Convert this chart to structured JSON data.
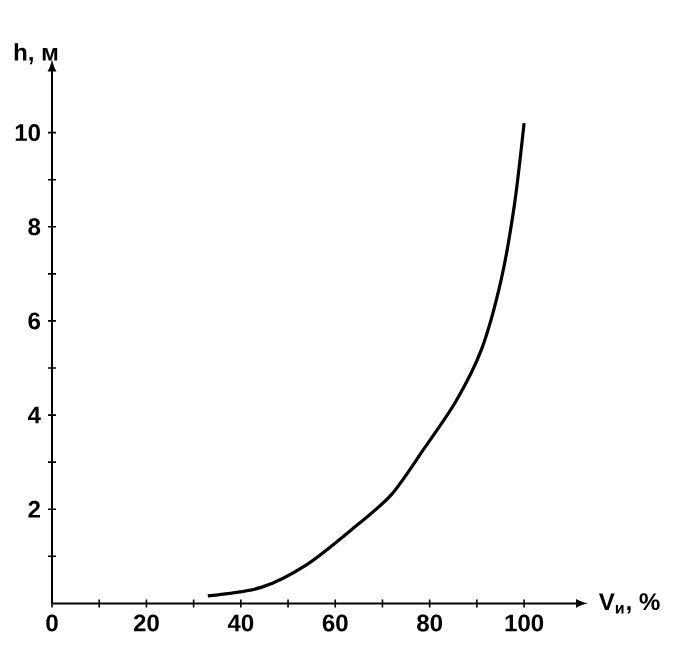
{
  "chart_data": {
    "type": "line",
    "xlabel": "V$_{и}$, %",
    "ylabel": "h, м",
    "x": [
      33,
      44.3,
      53.9,
      63.5,
      71.8,
      78.7,
      85.6,
      91,
      95.2,
      98,
      100
    ],
    "series": [
      {
        "color": "#000000",
        "values": [
          0.16,
          0.34,
          0.82,
          1.57,
          2.3,
          3.27,
          4.3,
          5.4,
          6.9,
          8.5,
          10.2
        ]
      }
    ],
    "xlim": [
      0,
      111
    ],
    "ylim": [
      0,
      11.3
    ],
    "xticks": [
      0,
      {
        "value": 10,
        "label": null
      },
      20,
      {
        "value": 30,
        "label": null
      },
      40,
      {
        "value": 50,
        "label": null
      },
      60,
      {
        "value": 70,
        "label": null
      },
      80,
      {
        "value": 90,
        "label": null
      },
      100
    ],
    "yticks": [
      {
        "value": 1,
        "label": null
      },
      2,
      {
        "value": 3,
        "label": null
      },
      4,
      {
        "value": 5,
        "label": null
      },
      6,
      {
        "value": 7,
        "label": null
      },
      8,
      {
        "value": 9,
        "label": null
      },
      10
    ],
    "grid": false
  }
}
